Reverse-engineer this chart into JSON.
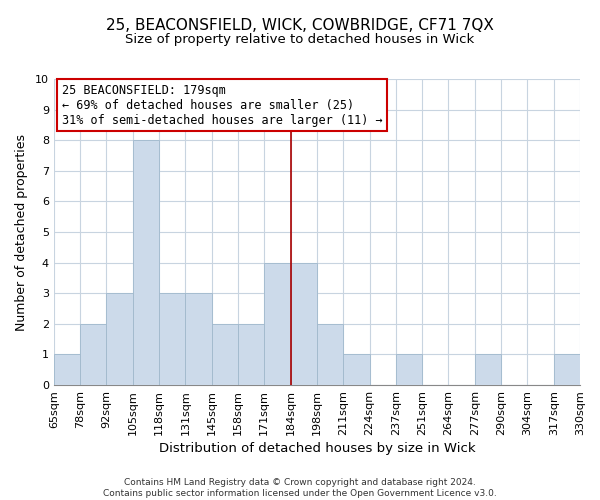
{
  "title1": "25, BEACONSFIELD, WICK, COWBRIDGE, CF71 7QX",
  "title2": "Size of property relative to detached houses in Wick",
  "xlabel": "Distribution of detached houses by size in Wick",
  "ylabel": "Number of detached properties",
  "footer1": "Contains HM Land Registry data © Crown copyright and database right 2024.",
  "footer2": "Contains public sector information licensed under the Open Government Licence v3.0.",
  "bins": [
    "65sqm",
    "78sqm",
    "92sqm",
    "105sqm",
    "118sqm",
    "131sqm",
    "145sqm",
    "158sqm",
    "171sqm",
    "184sqm",
    "198sqm",
    "211sqm",
    "224sqm",
    "237sqm",
    "251sqm",
    "264sqm",
    "277sqm",
    "290sqm",
    "304sqm",
    "317sqm",
    "330sqm"
  ],
  "counts": [
    1,
    2,
    3,
    8,
    3,
    3,
    2,
    2,
    4,
    4,
    2,
    1,
    0,
    1,
    0,
    0,
    1,
    0,
    0,
    1
  ],
  "bar_color": "#ccdaea",
  "bar_edge_color": "#a0b8cc",
  "highlight_line_color": "#aa0000",
  "annotation_text": "25 BEACONSFIELD: 179sqm\n← 69% of detached houses are smaller (25)\n31% of semi-detached houses are larger (11) →",
  "annotation_box_color": "#ffffff",
  "annotation_box_edge": "#cc0000",
  "ylim": [
    0,
    10
  ],
  "yticks": [
    0,
    1,
    2,
    3,
    4,
    5,
    6,
    7,
    8,
    9,
    10
  ],
  "title1_fontsize": 11,
  "title2_fontsize": 9.5,
  "xlabel_fontsize": 9.5,
  "ylabel_fontsize": 9,
  "annotation_fontsize": 8.5,
  "tick_fontsize": 8,
  "footer_fontsize": 6.5
}
